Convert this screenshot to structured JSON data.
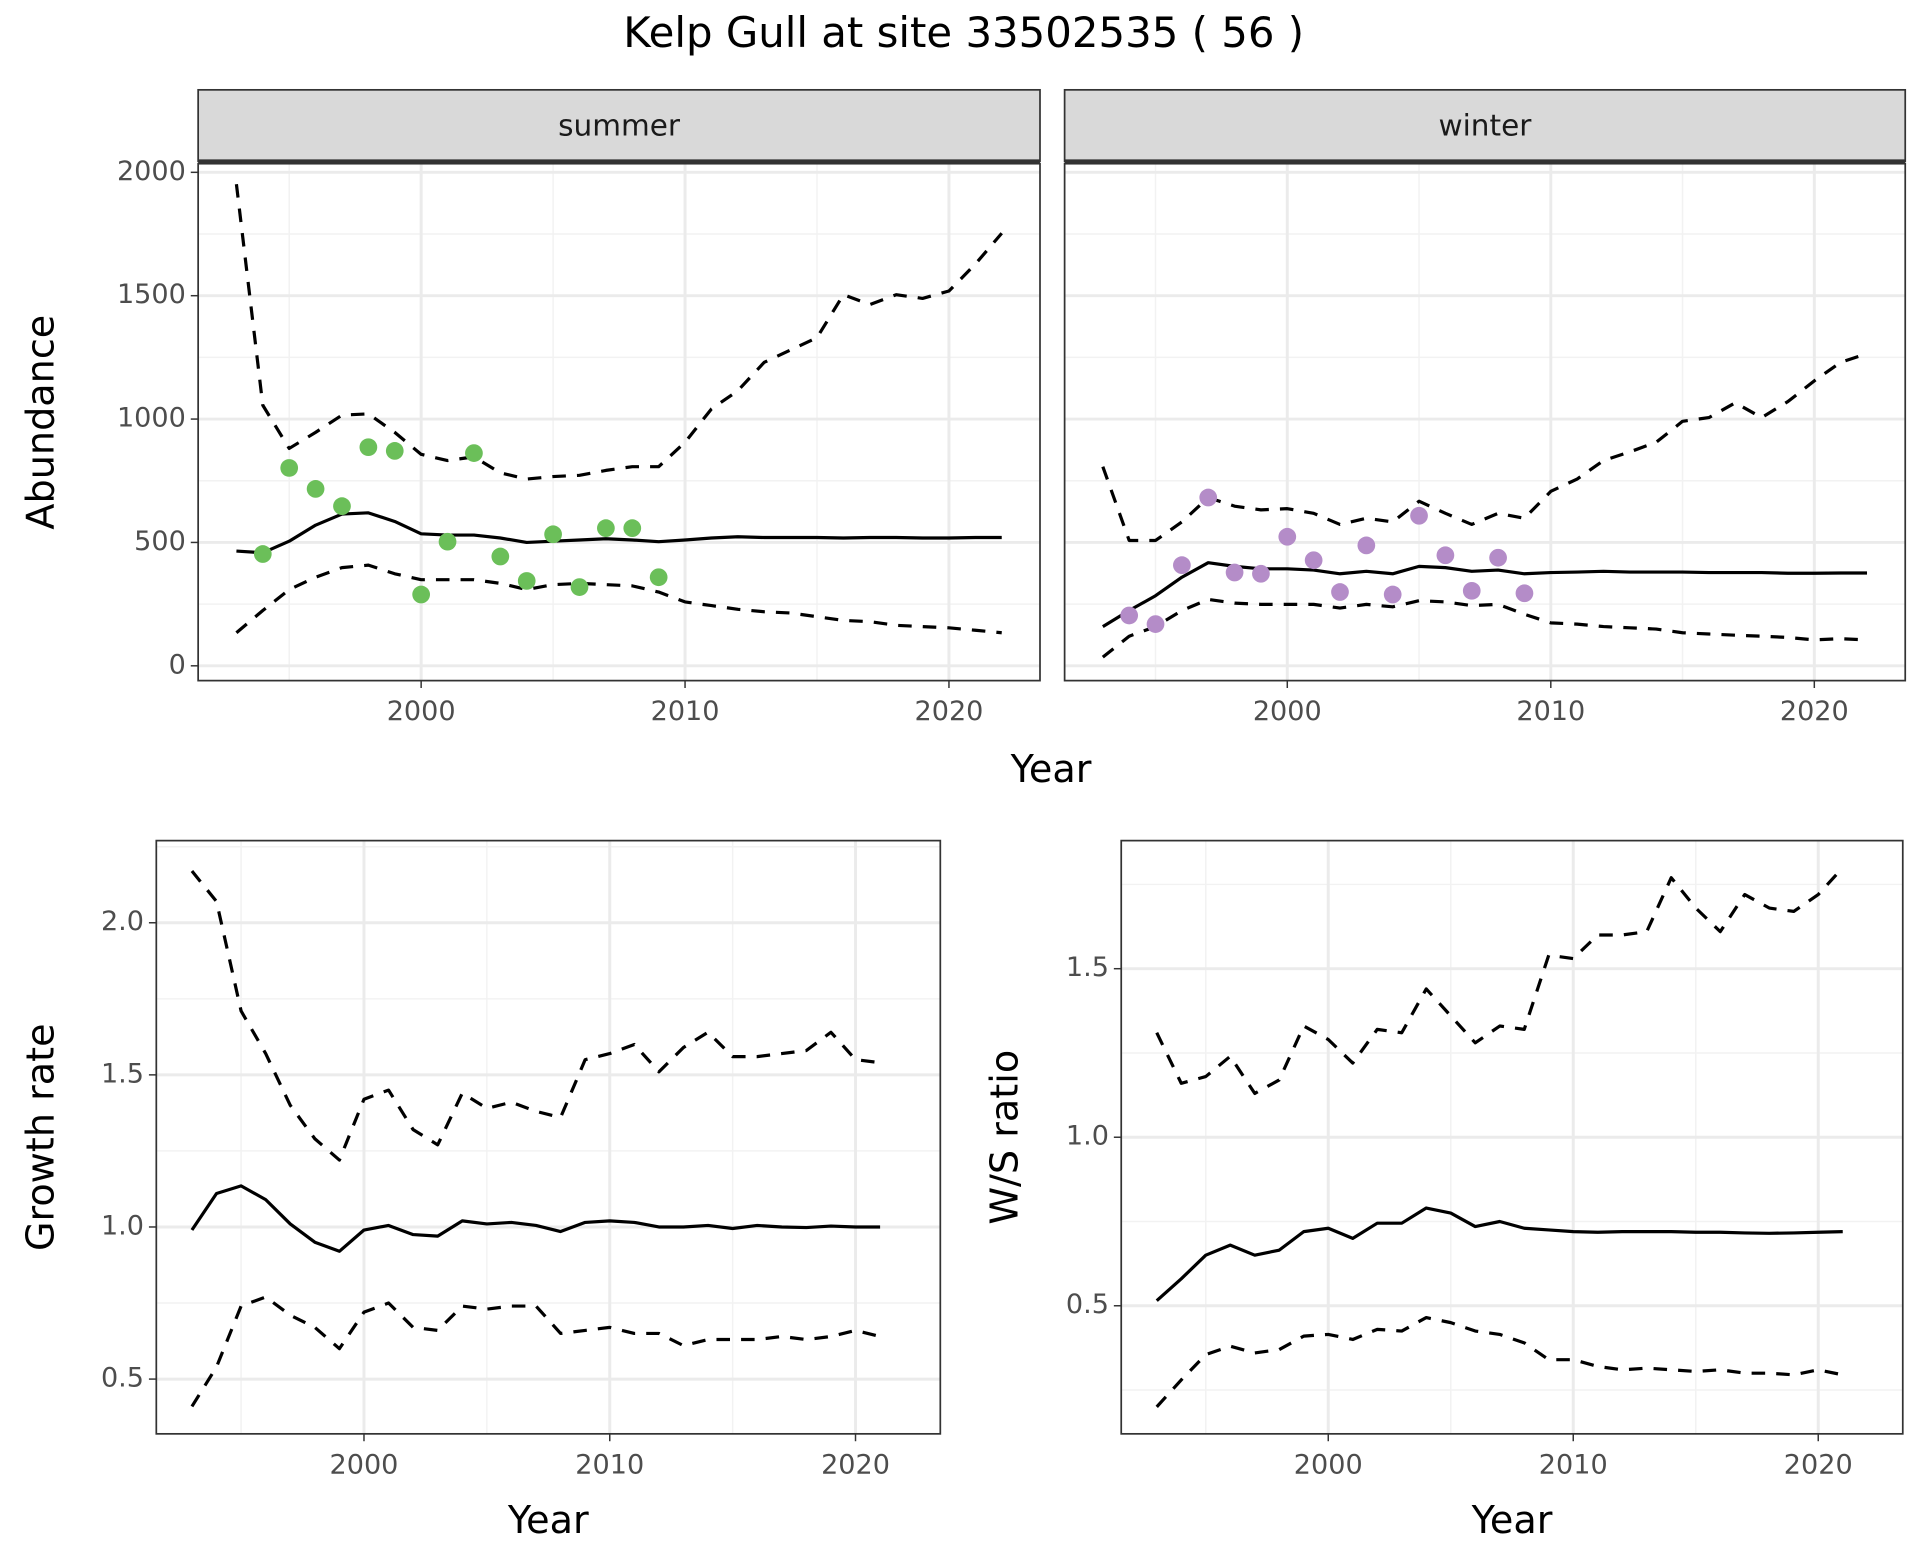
{
  "title": "Kelp Gull at site 33502535 ( 56 )",
  "xlabel": "Year",
  "chart_data": [
    {
      "type": "line",
      "title": "summer",
      "ylabel": "Abundance",
      "xlim": [
        1991.55,
        2023.45
      ],
      "xticks": [
        2000,
        2010,
        2020
      ],
      "ylim": [
        -60,
        2035
      ],
      "yticks": [
        0,
        500,
        1000,
        1500,
        2000
      ],
      "ytick_labels": true,
      "grid": true,
      "x": [
        1993,
        1994,
        1995,
        1996,
        1997,
        1998,
        1999,
        2000,
        2001,
        2002,
        2003,
        2004,
        2005,
        2006,
        2007,
        2008,
        2009,
        2010,
        2011,
        2012,
        2013,
        2014,
        2015,
        2016,
        2017,
        2018,
        2019,
        2020,
        2021,
        2022
      ],
      "series": [
        {
          "color": "#000000",
          "dashed": false,
          "values": [
            465,
            458,
            505,
            570,
            615,
            620,
            585,
            535,
            530,
            530,
            518,
            500,
            505,
            510,
            515,
            510,
            503,
            510,
            518,
            523,
            520,
            520,
            520,
            518,
            520,
            520,
            518,
            518,
            520,
            520
          ]
        },
        {
          "color": "#000000",
          "dashed": true,
          "values": [
            1952,
            1056,
            881,
            946,
            1016,
            1021,
            946,
            857,
            832,
            847,
            782,
            757,
            767,
            772,
            792,
            807,
            807,
            906,
            1041,
            1115,
            1230,
            1280,
            1330,
            1504,
            1464,
            1504,
            1489,
            1519,
            1628,
            1753
          ]
        },
        {
          "color": "#000000",
          "dashed": true,
          "values": [
            134,
            224,
            309,
            359,
            398,
            408,
            373,
            349,
            349,
            349,
            334,
            309,
            329,
            334,
            329,
            324,
            299,
            259,
            244,
            229,
            219,
            214,
            199,
            184,
            179,
            164,
            159,
            154,
            144,
            134
          ]
        }
      ],
      "points": {
        "color": "#6bbf59",
        "x": [
          1994,
          1995,
          1996,
          1997,
          1998,
          1999,
          2000,
          2001,
          2002,
          2003,
          2004,
          2005,
          2006,
          2007,
          2008,
          2009
        ],
        "values": [
          453,
          802,
          717,
          647,
          886,
          871,
          289,
          503,
          862,
          443,
          344,
          533,
          319,
          558,
          558,
          359
        ]
      }
    },
    {
      "type": "line",
      "title": "winter",
      "xlim": [
        1991.55,
        2023.45
      ],
      "xticks": [
        2000,
        2010,
        2020
      ],
      "ylim": [
        -60,
        2035
      ],
      "yticks": [
        0,
        500,
        1000,
        1500,
        2000
      ],
      "ytick_labels": false,
      "grid": true,
      "x": [
        1993,
        1994,
        1995,
        1996,
        1997,
        1998,
        1999,
        2000,
        2001,
        2002,
        2003,
        2004,
        2005,
        2006,
        2007,
        2008,
        2009,
        2010,
        2011,
        2012,
        2013,
        2014,
        2015,
        2016,
        2017,
        2018,
        2019,
        2020,
        2021,
        2022
      ],
      "series": [
        {
          "color": "#000000",
          "dashed": false,
          "values": [
            159,
            224,
            284,
            359,
            418,
            403,
            393,
            393,
            388,
            373,
            383,
            373,
            403,
            398,
            383,
            388,
            373,
            378,
            380,
            383,
            380,
            380,
            380,
            378,
            378,
            378,
            375,
            375,
            376,
            376
          ]
        },
        {
          "color": "#000000",
          "dashed": true,
          "values": [
            807,
            508,
            508,
            583,
            682,
            647,
            632,
            637,
            618,
            573,
            598,
            583,
            667,
            618,
            573,
            618,
            598,
            707,
            757,
            832,
            867,
            906,
            991,
            1006,
            1066,
            1006,
            1071,
            1155,
            1230,
            1265
          ]
        },
        {
          "color": "#000000",
          "dashed": true,
          "values": [
            35,
            120,
            159,
            224,
            269,
            254,
            249,
            249,
            249,
            234,
            249,
            239,
            264,
            259,
            244,
            249,
            209,
            174,
            169,
            159,
            154,
            149,
            134,
            129,
            124,
            120,
            115,
            105,
            110,
            105
          ]
        }
      ],
      "points": {
        "color": "#b48cc8",
        "x": [
          1994,
          1995,
          1996,
          1997,
          1998,
          1999,
          2000,
          2001,
          2002,
          2003,
          2004,
          2005,
          2006,
          2007,
          2008,
          2009
        ],
        "values": [
          204,
          169,
          408,
          682,
          378,
          373,
          523,
          428,
          299,
          488,
          289,
          608,
          448,
          304,
          438,
          294
        ]
      }
    },
    {
      "type": "line",
      "ylabel": "Growth rate",
      "xlabel": "Year",
      "xlim": [
        1991.55,
        2023.45
      ],
      "xticks": [
        2000,
        2010,
        2020
      ],
      "ylim": [
        0.32,
        2.27
      ],
      "yticks": [
        0.5,
        {
          "value": 1,
          "label": "1.0"
        },
        1.5,
        {
          "value": 2,
          "label": "2.0"
        }
      ],
      "ytick_labels": true,
      "grid": true,
      "x": [
        1993,
        1994,
        1995,
        1996,
        1997,
        1998,
        1999,
        2000,
        2001,
        2002,
        2003,
        2004,
        2005,
        2006,
        2007,
        2008,
        2009,
        2010,
        2011,
        2012,
        2013,
        2014,
        2015,
        2016,
        2017,
        2018,
        2019,
        2020,
        2021
      ],
      "series": [
        {
          "color": "#000000",
          "dashed": false,
          "values": [
            0.99,
            1.11,
            1.135,
            1.09,
            1.01,
            0.95,
            0.92,
            0.99,
            1.005,
            0.975,
            0.97,
            1.02,
            1.01,
            1.015,
            1.005,
            0.985,
            1.015,
            1.02,
            1.015,
            1.0,
            1.0,
            1.005,
            0.995,
            1.005,
            1.0,
            0.998,
            1.003,
            1.0,
            1.0
          ]
        },
        {
          "color": "#000000",
          "dashed": true,
          "values": [
            2.17,
            2.07,
            1.71,
            1.57,
            1.4,
            1.29,
            1.22,
            1.42,
            1.45,
            1.32,
            1.27,
            1.44,
            1.39,
            1.41,
            1.38,
            1.36,
            1.55,
            1.57,
            1.6,
            1.51,
            1.59,
            1.64,
            1.56,
            1.56,
            1.57,
            1.58,
            1.64,
            1.55,
            1.54
          ]
        },
        {
          "color": "#000000",
          "dashed": true,
          "values": [
            0.41,
            0.54,
            0.74,
            0.77,
            0.71,
            0.67,
            0.6,
            0.72,
            0.75,
            0.67,
            0.66,
            0.74,
            0.73,
            0.74,
            0.74,
            0.65,
            0.66,
            0.67,
            0.65,
            0.65,
            0.61,
            0.63,
            0.63,
            0.63,
            0.64,
            0.63,
            0.64,
            0.66,
            0.64
          ]
        }
      ]
    },
    {
      "type": "line",
      "ylabel": "W/S ratio",
      "xlabel": "Year",
      "xlim": [
        1991.55,
        2023.45
      ],
      "xticks": [
        2000,
        2010,
        2020
      ],
      "ylim": [
        0.12,
        1.88
      ],
      "yticks": [
        0.5,
        {
          "value": 1,
          "label": "1.0"
        },
        1.5
      ],
      "ytick_labels": true,
      "grid": true,
      "x": [
        1993,
        1994,
        1995,
        1996,
        1997,
        1998,
        1999,
        2000,
        2001,
        2002,
        2003,
        2004,
        2005,
        2006,
        2007,
        2008,
        2009,
        2010,
        2011,
        2012,
        2013,
        2014,
        2015,
        2016,
        2017,
        2018,
        2019,
        2020,
        2021
      ],
      "series": [
        {
          "color": "#000000",
          "dashed": false,
          "values": [
            0.515,
            0.58,
            0.65,
            0.68,
            0.65,
            0.665,
            0.72,
            0.73,
            0.7,
            0.745,
            0.745,
            0.79,
            0.775,
            0.735,
            0.75,
            0.73,
            0.725,
            0.72,
            0.718,
            0.72,
            0.72,
            0.72,
            0.718,
            0.718,
            0.716,
            0.715,
            0.716,
            0.718,
            0.72
          ]
        },
        {
          "color": "#000000",
          "dashed": true,
          "values": [
            1.31,
            1.16,
            1.18,
            1.24,
            1.13,
            1.17,
            1.33,
            1.29,
            1.22,
            1.32,
            1.31,
            1.44,
            1.36,
            1.28,
            1.33,
            1.32,
            1.54,
            1.53,
            1.6,
            1.6,
            1.61,
            1.77,
            1.68,
            1.61,
            1.72,
            1.68,
            1.67,
            1.72,
            1.8
          ]
        },
        {
          "color": "#000000",
          "dashed": true,
          "values": [
            0.2,
            0.28,
            0.355,
            0.38,
            0.36,
            0.37,
            0.41,
            0.415,
            0.4,
            0.43,
            0.425,
            0.465,
            0.45,
            0.425,
            0.415,
            0.39,
            0.34,
            0.34,
            0.32,
            0.31,
            0.315,
            0.31,
            0.305,
            0.31,
            0.3,
            0.3,
            0.295,
            0.31,
            0.295
          ]
        }
      ]
    }
  ]
}
